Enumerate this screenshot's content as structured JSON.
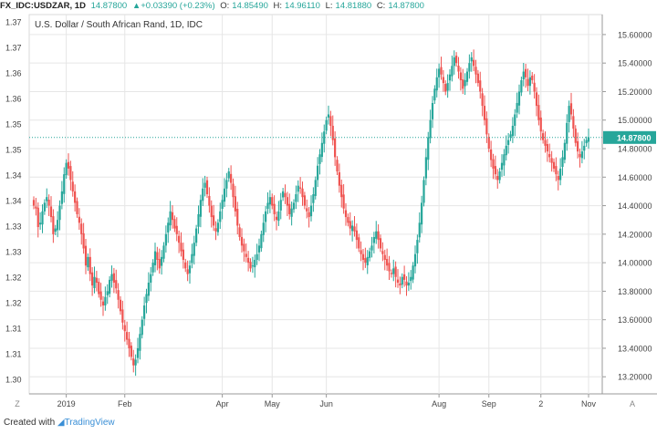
{
  "header": {
    "symbol": "FX_IDC:USDZAR, 1D",
    "price": "14.87800",
    "change": "▲+0.03390 (+0.23%)",
    "o_label": "O:",
    "o_value": "14.85490",
    "h_label": "H:",
    "h_value": "14.96110",
    "l_label": "L:",
    "l_value": "14.81880",
    "c_label": "C:",
    "c_value": "14.87800"
  },
  "footer": {
    "created_with": "Created with",
    "brand": "TradingView"
  },
  "buttons": {
    "z": "Z",
    "a": "A"
  },
  "colors": {
    "up": "#26a69a",
    "down": "#ef5350",
    "price_line": "#26a69a",
    "grid": "#e6e6e6"
  },
  "chart_data": {
    "type": "candlestick",
    "title": "U.S. Dollar / South African Rand, 1D, IDC",
    "current_price_label": "14.87800",
    "left_axis": {
      "ticks": [
        "1.37",
        "1.37",
        "1.36",
        "1.36",
        "1.35",
        "1.35",
        "1.34",
        "1.34",
        "1.33",
        "1.33",
        "1.32",
        "1.32",
        "1.31",
        "1.31",
        "1.30"
      ]
    },
    "right_axis": {
      "ticks": [
        "15.60000",
        "15.40000",
        "15.20000",
        "15.00000",
        "14.80000",
        "14.60000",
        "14.40000",
        "14.20000",
        "14.00000",
        "13.80000",
        "13.60000",
        "13.40000",
        "13.20000"
      ],
      "ylim": [
        13.08,
        15.74
      ]
    },
    "x_ticks": [
      "2019",
      "Feb",
      "Apr",
      "May",
      "Jun",
      "Aug",
      "Sep",
      "2",
      "Nov"
    ],
    "x_tick_index": [
      15,
      42,
      87,
      110,
      135,
      187,
      210,
      234,
      256
    ],
    "closes": [
      14.4,
      14.38,
      14.25,
      14.28,
      14.36,
      14.42,
      14.46,
      14.4,
      14.32,
      14.2,
      14.24,
      14.3,
      14.4,
      14.5,
      14.62,
      14.7,
      14.66,
      14.58,
      14.5,
      14.42,
      14.34,
      14.28,
      14.2,
      14.1,
      13.98,
      14.04,
      13.92,
      13.84,
      13.9,
      13.86,
      13.78,
      13.74,
      13.7,
      13.76,
      13.8,
      13.88,
      13.92,
      13.86,
      13.82,
      13.74,
      13.66,
      13.58,
      13.52,
      13.46,
      13.4,
      13.34,
      13.28,
      13.32,
      13.4,
      13.5,
      13.6,
      13.7,
      13.78,
      13.86,
      13.92,
      14.0,
      14.08,
      14.02,
      13.96,
      14.04,
      14.12,
      14.2,
      14.28,
      14.36,
      14.3,
      14.24,
      14.2,
      14.14,
      14.08,
      14.02,
      13.96,
      13.92,
      13.98,
      14.06,
      14.14,
      14.24,
      14.34,
      14.44,
      14.52,
      14.56,
      14.48,
      14.4,
      14.32,
      14.26,
      14.22,
      14.28,
      14.36,
      14.44,
      14.52,
      14.58,
      14.64,
      14.56,
      14.46,
      14.36,
      14.26,
      14.18,
      14.12,
      14.08,
      14.04,
      14.0,
      13.96,
      13.98,
      14.02,
      14.06,
      14.12,
      14.2,
      14.28,
      14.36,
      14.42,
      14.46,
      14.4,
      14.34,
      14.3,
      14.36,
      14.44,
      14.5,
      14.46,
      14.4,
      14.34,
      14.38,
      14.42,
      14.48,
      14.54,
      14.52,
      14.46,
      14.4,
      14.36,
      14.32,
      14.4,
      14.48,
      14.58,
      14.68,
      14.76,
      14.84,
      14.92,
      15.0,
      15.04,
      14.96,
      14.86,
      14.74,
      14.64,
      14.54,
      14.46,
      14.38,
      14.32,
      14.28,
      14.24,
      14.26,
      14.22,
      14.16,
      14.1,
      14.06,
      14.02,
      14.0,
      14.04,
      14.08,
      14.12,
      14.18,
      14.22,
      14.16,
      14.1,
      14.06,
      14.02,
      13.98,
      13.94,
      13.92,
      13.96,
      13.9,
      13.86,
      13.84,
      13.9,
      13.88,
      13.84,
      13.86,
      13.9,
      13.98,
      14.06,
      14.16,
      14.28,
      14.42,
      14.58,
      14.74,
      14.88,
      15.0,
      15.12,
      15.22,
      15.3,
      15.36,
      15.32,
      15.26,
      15.2,
      15.26,
      15.32,
      15.38,
      15.44,
      15.4,
      15.34,
      15.28,
      15.22,
      15.28,
      15.34,
      15.4,
      15.44,
      15.38,
      15.32,
      15.26,
      15.2,
      15.1,
      15.0,
      14.9,
      14.8,
      14.72,
      14.66,
      14.62,
      14.58,
      14.64,
      14.7,
      14.76,
      14.82,
      14.86,
      14.9,
      14.96,
      15.04,
      15.12,
      15.2,
      15.28,
      15.34,
      15.3,
      15.24,
      15.3,
      15.28,
      15.2,
      15.1,
      15.0,
      14.92,
      14.86,
      14.82,
      14.78,
      14.74,
      14.7,
      14.66,
      14.62,
      14.58,
      14.66,
      14.74,
      14.84,
      14.98,
      15.1,
      15.04,
      14.94,
      14.84,
      14.78,
      14.74,
      14.78,
      14.82,
      14.86,
      14.88
    ]
  }
}
